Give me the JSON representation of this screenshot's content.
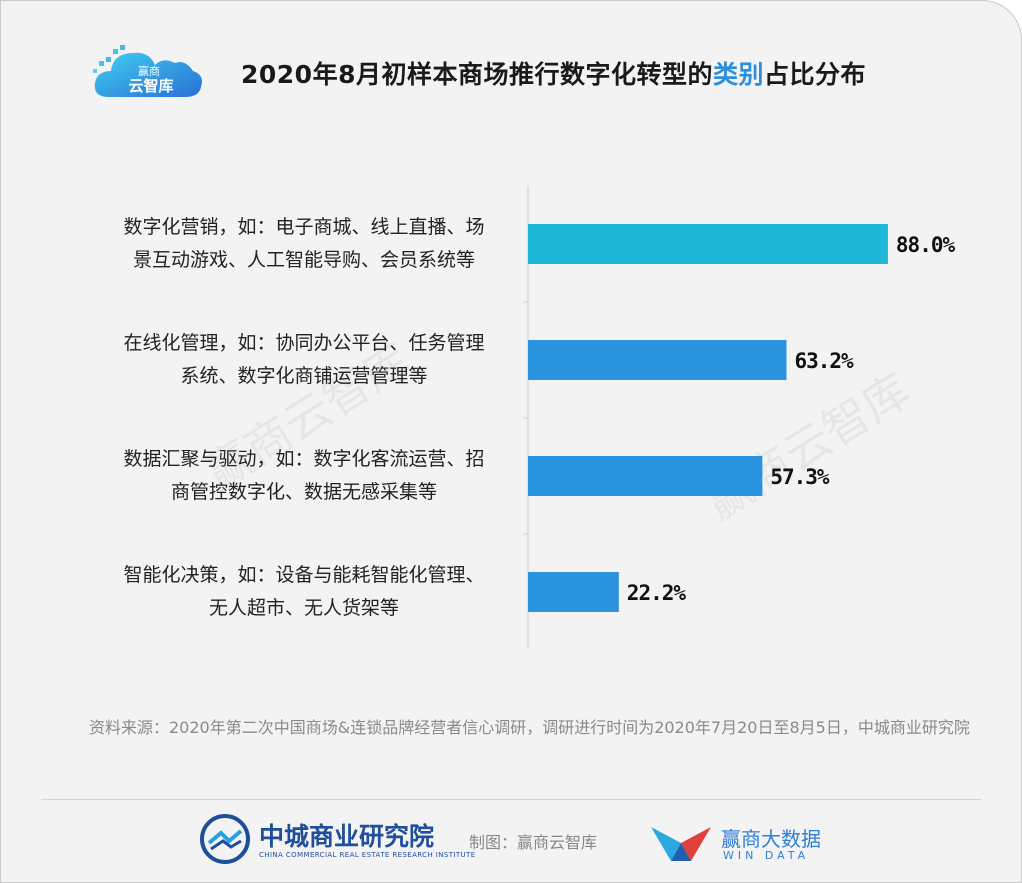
{
  "header": {
    "logo_line1": "赢商",
    "logo_line2": "云智库",
    "title_part1": "2020年8月初样本商场推行数字化转型的",
    "title_highlight": "类别",
    "title_part2": "占比分布"
  },
  "watermark": "赢商云智库",
  "chart_data": {
    "type": "bar",
    "orientation": "horizontal",
    "title": "2020年8月初样本商场推行数字化转型的类别占比分布",
    "categories": [
      [
        "数字化营销，如：电子商城、线上直播、场",
        "景互动游戏、人工智能导购、会员系统等"
      ],
      [
        "在线化管理，如：协同办公平台、任务管理",
        "系统、数字化商铺运营管理等"
      ],
      [
        "数据汇聚与驱动，如：数字化客流运营、招",
        "商管控数字化、数据无感采集等"
      ],
      [
        "智能化决策，如：设备与能耗智能化管理、",
        "无人超市、无人货架等"
      ]
    ],
    "values": [
      88.0,
      63.2,
      57.3,
      22.2
    ],
    "value_labels": [
      "88.0%",
      "63.2%",
      "57.3%",
      "22.2%"
    ],
    "unit": "%",
    "xlim": [
      0,
      100
    ],
    "grid": false,
    "colors": [
      "#1fb8d8",
      "#2a93e0",
      "#2a93e0",
      "#2a93e0"
    ]
  },
  "source": {
    "text": "资料来源：2020年第二次中国商场&连锁品牌经营者信心调研，调研进行时间为2020年7月20日至8月5日，中城商业研究院"
  },
  "footer": {
    "org_name": "中城商业研究院",
    "org_en": "CHINA COMMERCIAL REAL ESTATE RESEARCH INSTITUTE",
    "credit": "制图：赢商云智库",
    "brand": "赢商大数据",
    "brand_en": "WIN DATA"
  }
}
